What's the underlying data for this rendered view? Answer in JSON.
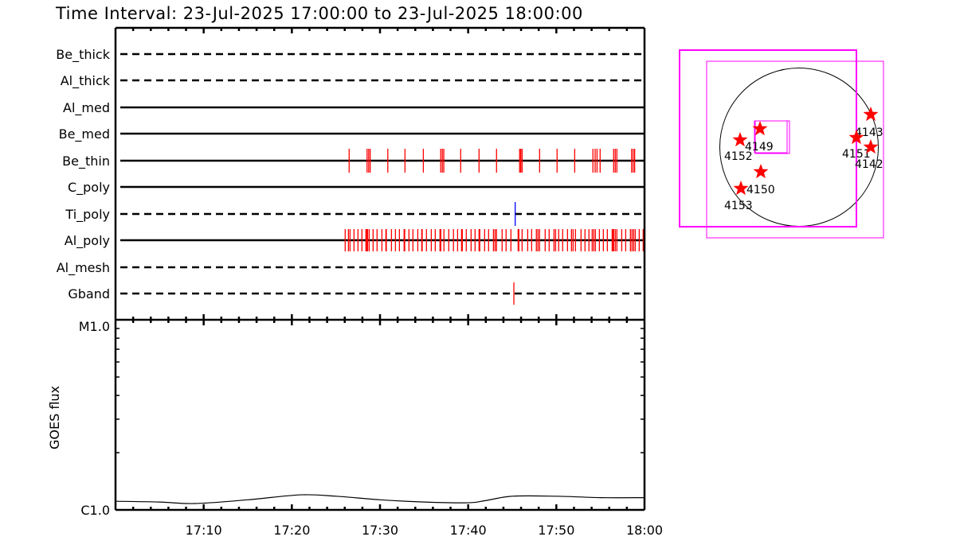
{
  "chart_data": [
    {
      "type": "event-raster",
      "title": "Time Interval: 23-Jul-2025 17:00:00 to 23-Jul-2025 18:00:00",
      "xlim": [
        "17:00:00",
        "18:00:00"
      ],
      "x_tick_labels": [
        "17:10",
        "17:20",
        "17:30",
        "17:40",
        "17:50",
        "18:00"
      ],
      "rows": [
        {
          "name": "Be_thick",
          "line": "dashed",
          "events": []
        },
        {
          "name": "Al_thick",
          "line": "dashed",
          "events": []
        },
        {
          "name": "Al_med",
          "line": "solid",
          "events": []
        },
        {
          "name": "Be_med",
          "line": "solid",
          "events": []
        },
        {
          "name": "Be_thin",
          "line": "solid",
          "color": "#ff0000",
          "events": [
            "17:26:30",
            "17:28:32",
            "17:28:43",
            "17:28:53",
            "17:30:53",
            "17:32:50",
            "17:34:55",
            "17:36:53",
            "17:37:04",
            "17:37:14",
            "17:39:09",
            "17:41:14",
            "17:43:13",
            "17:45:50",
            "17:45:58",
            "17:46:07",
            "17:48:06",
            "17:50:05",
            "17:52:05",
            "17:54:09",
            "17:54:24",
            "17:54:37",
            "17:54:58",
            "17:56:30",
            "17:56:41",
            "17:56:52",
            "17:58:32",
            "17:58:43",
            "17:58:53"
          ]
        },
        {
          "name": "C_poly",
          "line": "solid",
          "events": []
        },
        {
          "name": "Ti_poly",
          "line": "dashed",
          "color": "#0000ff",
          "events": [
            "17:45:20"
          ]
        },
        {
          "name": "Al_poly",
          "line": "solid",
          "color": "#ff0000",
          "events": [
            "17:26:03",
            "17:26:25",
            "17:26:36",
            "17:27:03",
            "17:27:30",
            "17:27:57",
            "17:28:24",
            "17:28:30",
            "17:28:35",
            "17:28:46",
            "17:29:13",
            "17:29:40",
            "17:30:13",
            "17:30:40",
            "17:30:43",
            "17:31:18",
            "17:31:45",
            "17:32:12",
            "17:32:44",
            "17:32:48",
            "17:33:17",
            "17:33:44",
            "17:34:17",
            "17:34:44",
            "17:34:47",
            "17:35:16",
            "17:35:49",
            "17:36:16",
            "17:36:48",
            "17:36:54",
            "17:37:15",
            "17:37:48",
            "17:38:20",
            "17:38:48",
            "17:39:15",
            "17:39:20",
            "17:39:47",
            "17:40:20",
            "17:40:47",
            "17:41:14",
            "17:41:19",
            "17:41:52",
            "17:42:19",
            "17:42:52",
            "17:43:03",
            "17:43:13",
            "17:43:51",
            "17:44:18",
            "17:44:51",
            "17:45:40",
            "17:45:45",
            "17:46:07",
            "17:46:45",
            "17:47:12",
            "17:47:44",
            "17:47:55",
            "17:48:06",
            "17:48:44",
            "17:49:11",
            "17:49:44",
            "17:49:55",
            "17:50:16",
            "17:50:43",
            "17:51:16",
            "17:51:43",
            "17:51:54",
            "17:52:10",
            "17:52:48",
            "17:53:15",
            "17:53:42",
            "17:54:04",
            "17:54:15",
            "17:54:26",
            "17:54:53",
            "17:55:20",
            "17:55:47",
            "17:56:20",
            "17:56:25",
            "17:56:30",
            "17:56:41",
            "17:56:52",
            "17:57:25",
            "17:57:52",
            "17:58:24",
            "17:58:35",
            "17:58:46",
            "17:58:57",
            "17:59:24",
            "17:59:51"
          ]
        },
        {
          "name": "Al_mesh",
          "line": "dashed",
          "events": []
        },
        {
          "name": "Gband",
          "line": "dashed",
          "color": "#ff0000",
          "events": [
            "17:45:11"
          ]
        }
      ]
    },
    {
      "type": "line",
      "ylabel": "GOES flux",
      "yscale": "log",
      "ylim": [
        1e-06,
        1e-05
      ],
      "y_tick_labels": [
        "C1.0",
        "M1.0"
      ],
      "x_tick_labels": [
        "17:10",
        "17:20",
        "17:30",
        "17:40",
        "17:50",
        "18:00"
      ],
      "x": [
        "17:00",
        "17:05",
        "17:09",
        "17:15",
        "17:21",
        "17:25",
        "17:30",
        "17:35",
        "17:40",
        "17:42",
        "17:45",
        "17:50",
        "17:55",
        "18:00"
      ],
      "values": [
        1.11e-06,
        1.1e-06,
        1.08e-06,
        1.13e-06,
        1.2e-06,
        1.18e-06,
        1.13e-06,
        1.1e-06,
        1.09e-06,
        1.12e-06,
        1.18e-06,
        1.18e-06,
        1.16e-06,
        1.16e-06
      ],
      "color": "#000000"
    },
    {
      "type": "map",
      "box_color": "#ff00ff",
      "marker_color": "#ff0000",
      "active_regions": [
        "4149",
        "4152",
        "4150",
        "4153",
        "4143",
        "4151",
        "4142"
      ]
    }
  ]
}
